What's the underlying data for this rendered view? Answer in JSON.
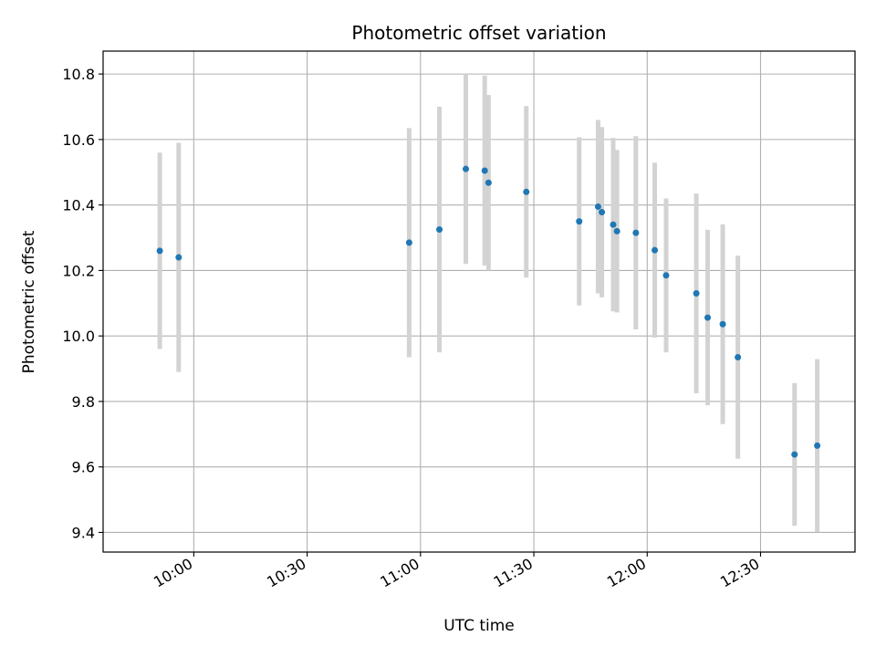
{
  "chart_data": {
    "type": "scatter",
    "title": "Photometric offset variation",
    "xlabel": "UTC time",
    "ylabel": "Photometric offset",
    "x_ticks": [
      "10:00",
      "10:30",
      "11:00",
      "11:30",
      "12:00",
      "12:30"
    ],
    "y_ticks": [
      "9.4",
      "9.6",
      "9.8",
      "10.0",
      "10.2",
      "10.4",
      "10.6",
      "10.8"
    ],
    "xlim": [
      "09:36",
      "12:55"
    ],
    "ylim": [
      9.34,
      10.87
    ],
    "grid": true,
    "colors": {
      "points": "#1f77b4",
      "errorbars": "#d3d3d3",
      "grid": "#b0b0b0"
    },
    "points": [
      {
        "t": "09:51",
        "y": 10.26,
        "err": 0.3
      },
      {
        "t": "09:56",
        "y": 10.24,
        "err": 0.35
      },
      {
        "t": "10:57",
        "y": 10.285,
        "err": 0.35
      },
      {
        "t": "11:05",
        "y": 10.325,
        "err": 0.375
      },
      {
        "t": "11:12",
        "y": 10.51,
        "err": 0.29
      },
      {
        "t": "11:17",
        "y": 10.505,
        "err": 0.29
      },
      {
        "t": "11:18",
        "y": 10.468,
        "err": 0.268
      },
      {
        "t": "11:28",
        "y": 10.44,
        "err": 0.262
      },
      {
        "t": "11:42",
        "y": 10.35,
        "err": 0.257
      },
      {
        "t": "11:47",
        "y": 10.395,
        "err": 0.265
      },
      {
        "t": "11:48",
        "y": 10.378,
        "err": 0.26
      },
      {
        "t": "11:51",
        "y": 10.34,
        "err": 0.265
      },
      {
        "t": "11:52",
        "y": 10.32,
        "err": 0.248
      },
      {
        "t": "11:57",
        "y": 10.315,
        "err": 0.295
      },
      {
        "t": "12:02",
        "y": 10.262,
        "err": 0.267
      },
      {
        "t": "12:05",
        "y": 10.185,
        "err": 0.235
      },
      {
        "t": "12:13",
        "y": 10.13,
        "err": 0.305
      },
      {
        "t": "12:16",
        "y": 10.056,
        "err": 0.268
      },
      {
        "t": "12:20",
        "y": 10.036,
        "err": 0.305
      },
      {
        "t": "12:24",
        "y": 9.935,
        "err": 0.31
      },
      {
        "t": "12:39",
        "y": 9.638,
        "err": 0.218
      },
      {
        "t": "12:45",
        "y": 9.665,
        "err": 0.264
      }
    ]
  }
}
